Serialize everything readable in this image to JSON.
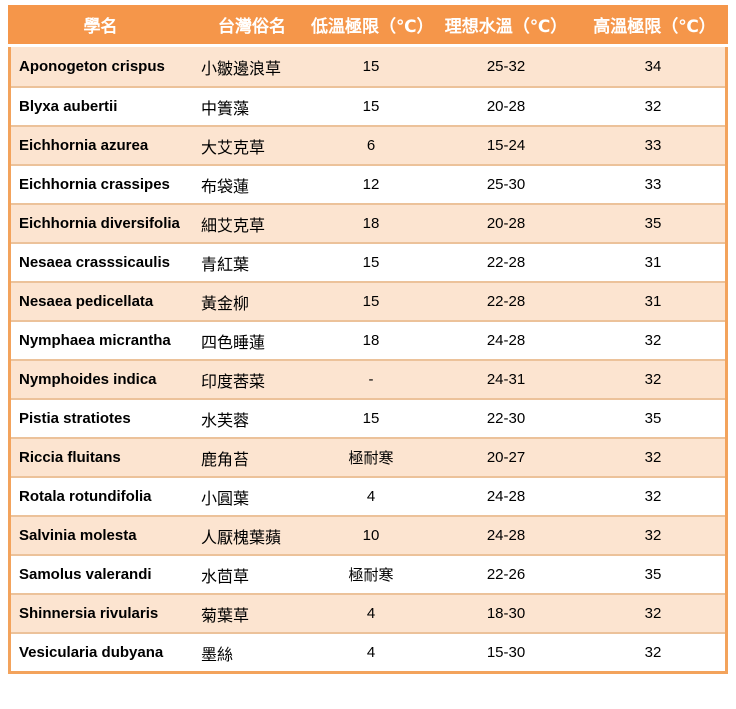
{
  "colors": {
    "header_bg": "#F5964A",
    "header_text": "#FFFFFF",
    "row_alt_bg": "#FCE4D0",
    "row_bg": "#FFFFFF",
    "outer_border": "#F3A35C",
    "row_separator": "#ECC29A",
    "body_text": "#000000"
  },
  "chart_data": {
    "type": "table",
    "columns": [
      "學名",
      "台灣俗名",
      "低溫極限（℃）",
      "理想水溫（℃）",
      "高溫極限（℃）"
    ],
    "column_keys": [
      "scientific-name",
      "common-name",
      "low-temp-limit",
      "ideal-water-temp",
      "high-temp-limit"
    ],
    "rows": [
      [
        "Aponogeton crispus",
        "小皺邊浪草",
        "15",
        "25-32",
        "34"
      ],
      [
        "Blyxa aubertii",
        "中簀藻",
        "15",
        "20-28",
        "32"
      ],
      [
        "Eichhornia azurea",
        "大艾克草",
        "6",
        "15-24",
        "33"
      ],
      [
        "Eichhornia crassipes",
        "布袋蓮",
        "12",
        "25-30",
        "33"
      ],
      [
        "Eichhornia diversifolia",
        "細艾克草",
        "18",
        "20-28",
        "35"
      ],
      [
        "Nesaea crasssicaulis",
        "青紅葉",
        "15",
        "22-28",
        "31"
      ],
      [
        "Nesaea pedicellata",
        "黃金柳",
        "15",
        "22-28",
        "31"
      ],
      [
        "Nymphaea micrantha",
        "四色睡蓮",
        "18",
        "24-28",
        "32"
      ],
      [
        "Nymphoides indica",
        "印度莕菜",
        "-",
        "24-31",
        "32"
      ],
      [
        "Pistia stratiotes",
        "水芙蓉",
        "15",
        "22-30",
        "35"
      ],
      [
        "Riccia fluitans",
        "鹿角苔",
        "極耐寒",
        "20-27",
        "32"
      ],
      [
        "Rotala rotundifolia",
        "小圓葉",
        "4",
        "24-28",
        "32"
      ],
      [
        "Salvinia molesta",
        "人厭槐葉蘋",
        "10",
        "24-28",
        "32"
      ],
      [
        "Samolus valerandi",
        "水茴草",
        "極耐寒",
        "22-26",
        "35"
      ],
      [
        "Shinnersia rivularis",
        "菊葉草",
        "4",
        "18-30",
        "32"
      ],
      [
        "Vesicularia dubyana",
        "墨絲",
        "4",
        "15-30",
        "32"
      ]
    ]
  }
}
